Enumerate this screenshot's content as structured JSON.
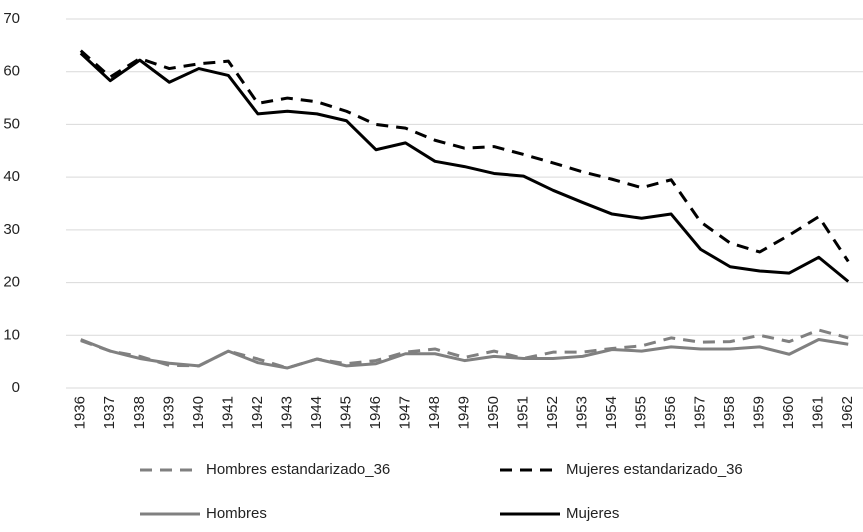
{
  "chart_data": {
    "type": "line",
    "categories": [
      "1936",
      "1937",
      "1938",
      "1939",
      "1940",
      "1941",
      "1942",
      "1943",
      "1944",
      "1945",
      "1946",
      "1947",
      "1948",
      "1949",
      "1950",
      "1951",
      "1952",
      "1953",
      "1954",
      "1955",
      "1956",
      "1957",
      "1958",
      "1959",
      "1960",
      "1961",
      "1962"
    ],
    "series": [
      {
        "name": "Hombres estandarizado_36",
        "color": "#808080",
        "style": "dashed",
        "values": [
          9,
          7,
          6,
          4.3,
          4.2,
          7,
          5.5,
          3.8,
          5.5,
          4.6,
          5.2,
          6.8,
          7.4,
          5.8,
          7,
          5.6,
          6.8,
          6.8,
          7.5,
          8,
          9.5,
          8.7,
          8.8,
          10,
          8.8,
          11,
          9.5
        ]
      },
      {
        "name": "Mujeres estandarizado_36",
        "color": "#000000",
        "style": "dashed",
        "values": [
          64,
          59,
          62.5,
          60.6,
          61.5,
          62,
          54,
          55,
          54.3,
          52.5,
          50,
          49.3,
          47,
          45.5,
          45.8,
          44.3,
          42.7,
          41,
          39.6,
          38,
          39.5,
          31.5,
          27.5,
          25.8,
          29,
          32.5,
          24
        ]
      },
      {
        "name": "Hombres",
        "color": "#808080",
        "style": "solid",
        "values": [
          9.2,
          7,
          5.6,
          4.7,
          4.2,
          7,
          4.8,
          3.8,
          5.5,
          4.2,
          4.6,
          6.5,
          6.5,
          5.2,
          6,
          5.6,
          5.6,
          6,
          7.3,
          7,
          7.8,
          7.4,
          7.4,
          7.8,
          6.4,
          9.2,
          8.3
        ]
      },
      {
        "name": "Mujeres",
        "color": "#000000",
        "style": "solid",
        "values": [
          63.5,
          58.3,
          62.2,
          58,
          60.6,
          59.3,
          52,
          52.5,
          52,
          50.7,
          45.2,
          46.5,
          43,
          42,
          40.7,
          40.2,
          37.5,
          35.2,
          33,
          32.2,
          33,
          26.3,
          23,
          22.2,
          21.8,
          24.8,
          20.2
        ]
      }
    ],
    "ylim": [
      0,
      70
    ],
    "yticks": [
      0,
      10,
      20,
      30,
      40,
      50,
      60,
      70
    ],
    "grid": true,
    "legend": "bottom"
  }
}
